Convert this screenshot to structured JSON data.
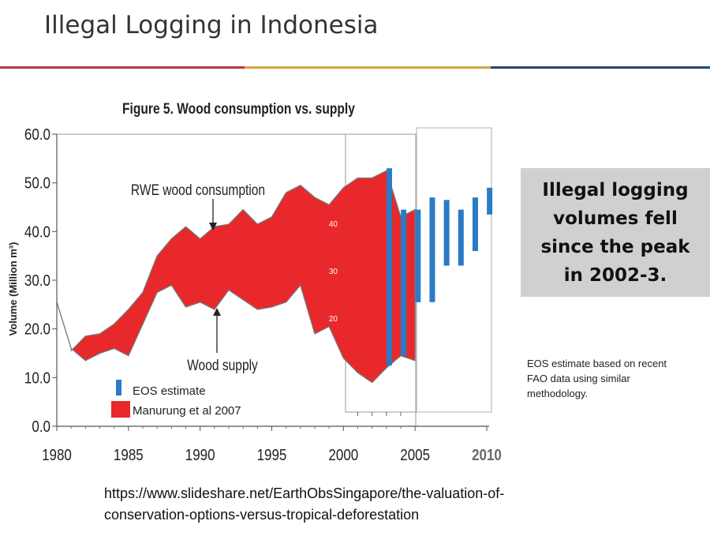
{
  "slide": {
    "title": "Illegal Logging in Indonesia",
    "callout_lines": [
      "Illegal logging",
      "volumes fell",
      "since the peak",
      "in 2002-3."
    ],
    "note": "EOS estimate based on recent FAO data using similar methodology.",
    "source_lines": [
      "https://www.slideshare.net/EarthObsSingapore/the-valuation-of-",
      "conservation-options-versus-tropical-deforestation"
    ],
    "rule_colors": [
      "#b83a3f",
      "#d9a24a",
      "#27457a"
    ]
  },
  "chart_data": {
    "type": "area",
    "title": "Figure 5.  Wood consumption vs. supply",
    "ylabel": "Volume (Million m³)",
    "xlabel": "",
    "xlim": [
      1980,
      2010
    ],
    "ylim": [
      0,
      60
    ],
    "x_ticks": [
      "1980",
      "1985",
      "1990",
      "1995",
      "2000",
      "2005",
      "2010"
    ],
    "y_ticks": [
      "0.0",
      "10.0",
      "20.0",
      "30.0",
      "40.0",
      "50.0",
      "60.0"
    ],
    "inner_ticks": [
      "40",
      "30",
      "20"
    ],
    "annotations": [
      "RWE wood consumption",
      "Wood supply"
    ],
    "legend": {
      "placement": "bottom-left",
      "entries": [
        {
          "label": "EOS estimate",
          "color": "#2a7bc4"
        },
        {
          "label": "Manurung et al 2007",
          "color": "#e8282a"
        }
      ]
    },
    "series": [
      {
        "name": "RWE wood consumption",
        "x": [
          1981,
          1982,
          1983,
          1984,
          1985,
          1986,
          1987,
          1988,
          1989,
          1990,
          1991,
          1992,
          1993,
          1994,
          1995,
          1996,
          1997,
          1998,
          1999,
          2000,
          2001,
          2002,
          2003,
          2004,
          2005
        ],
        "values": [
          15.5,
          18.5,
          19.0,
          21.0,
          24.0,
          27.5,
          35.0,
          38.5,
          41.0,
          38.5,
          41.0,
          41.5,
          44.5,
          41.5,
          43.0,
          48.0,
          49.5,
          47.0,
          45.5,
          49.0,
          51.0,
          51.0,
          52.5,
          43.0,
          44.5
        ]
      },
      {
        "name": "Wood supply",
        "x": [
          1980,
          1981,
          1982,
          1983,
          1984,
          1985,
          1986,
          1987,
          1988,
          1989,
          1990,
          1991,
          1992,
          1993,
          1994,
          1995,
          1996,
          1997,
          1998,
          1999,
          2000,
          2001,
          2002,
          2003,
          2004,
          2005
        ],
        "values": [
          25.5,
          16.0,
          13.5,
          15.0,
          16.0,
          14.5,
          21.0,
          27.5,
          29.0,
          24.5,
          25.5,
          24.0,
          28.0,
          26.0,
          24.0,
          24.5,
          25.5,
          29.0,
          19.0,
          20.5,
          14.0,
          11.0,
          9.0,
          12.0,
          14.5,
          13.5
        ]
      },
      {
        "name": "EOS estimate",
        "type": "floating-bar",
        "x": [
          2003.2,
          2004.2,
          2005.2,
          2006.2,
          2007.2,
          2008.2,
          2009.2,
          2010.2
        ],
        "low": [
          12.5,
          14.5,
          25.5,
          25.5,
          33.0,
          33.0,
          36.0,
          43.5
        ],
        "high": [
          53.0,
          44.5,
          44.5,
          47.0,
          46.5,
          44.5,
          47.0,
          49.0
        ]
      }
    ]
  }
}
